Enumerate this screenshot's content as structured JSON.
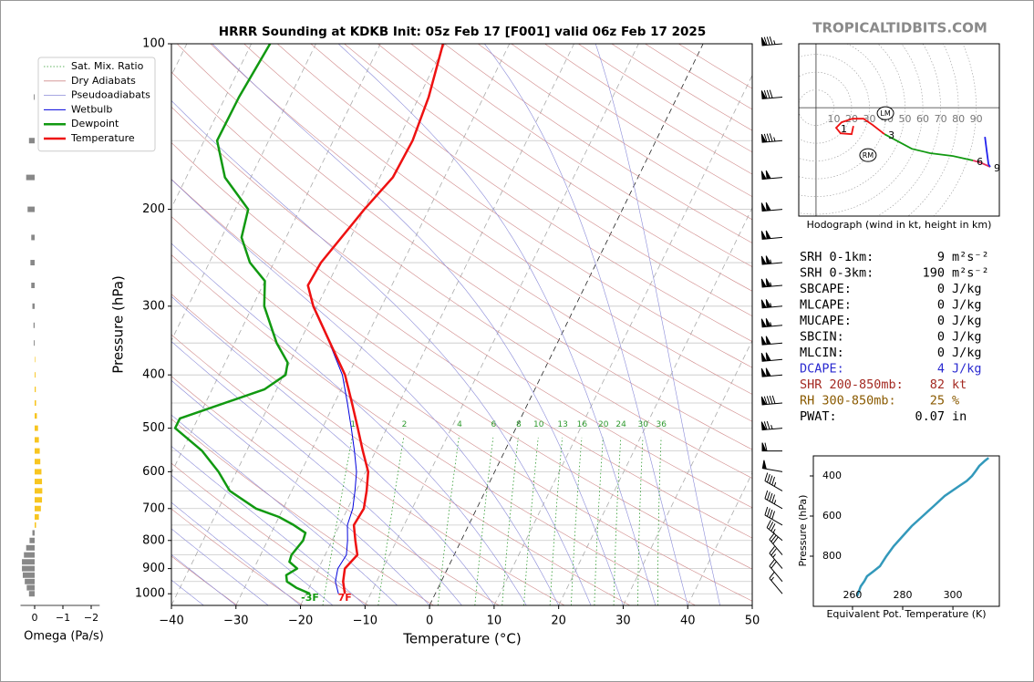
{
  "site": "TROPICALTIDBITS.COM",
  "chart_data": [
    {
      "type": "skewt",
      "title": "HRRR Sounding at KDKB Init: 05z Feb 17 [F001] valid 06z Feb 17 2025",
      "xlabel": "Temperature (°C)",
      "ylabel": "Pressure (hPa)",
      "xlim": [
        -40,
        50
      ],
      "ylim": [
        1050,
        100
      ],
      "log_scale": true,
      "xticks": [
        {
          "value": -40,
          "label": "−40"
        },
        {
          "value": -30,
          "label": "−30"
        },
        {
          "value": -20,
          "label": "−20"
        },
        {
          "value": -10,
          "label": "−10"
        },
        0,
        10,
        20,
        30,
        40,
        50
      ],
      "yticks": [
        100,
        200,
        300,
        400,
        500,
        600,
        700,
        800,
        900,
        1000
      ],
      "grid_levels": [
        100,
        150,
        200,
        250,
        300,
        350,
        400,
        450,
        500,
        550,
        600,
        650,
        700,
        750,
        800,
        850,
        900,
        950,
        1000
      ],
      "legend": "upper left",
      "background_lines": [
        {
          "name": "Sat. Mix. Ratio",
          "color": "#2e9a2e"
        },
        {
          "name": "Dry Adiabats",
          "color": "#d08a8a"
        },
        {
          "name": "Pseudoadiabats",
          "color": "#8a8ad8"
        }
      ],
      "mixing_ratios": [
        1,
        2,
        4,
        6,
        8,
        10,
        13,
        16,
        20,
        24,
        30,
        36
      ],
      "series": [
        {
          "name": "Wetbulb",
          "color": "#0000dd",
          "linewidth": 1,
          "pressure": [
            1000,
            950,
            900,
            850,
            800,
            750,
            700,
            650,
            600,
            550,
            500,
            450,
            400,
            350,
            300
          ],
          "values": [
            -15,
            -16.4,
            -17,
            -16.7,
            -17.6,
            -18.8,
            -19.2,
            -20.2,
            -21.4,
            -23.3,
            -25.5,
            -28,
            -30.9,
            -35.3,
            -40.7
          ]
        },
        {
          "name": "Dewpoint",
          "color": "#119911",
          "linewidth": 2.5,
          "surface_label": "-3F",
          "pressure": [
            1000,
            975,
            950,
            925,
            900,
            875,
            850,
            800,
            775,
            750,
            725,
            700,
            650,
            600,
            550,
            500,
            480,
            425,
            400,
            380,
            350,
            300,
            270,
            250,
            225,
            200,
            175,
            150,
            125,
            100
          ],
          "values": [
            -19.4,
            -22,
            -23.9,
            -24.5,
            -23.3,
            -25,
            -25.2,
            -24.5,
            -24.7,
            -27.1,
            -30,
            -34.2,
            -39.6,
            -42.8,
            -46.9,
            -52.8,
            -52.8,
            -41.9,
            -39.7,
            -40.3,
            -43.5,
            -48.2,
            -50,
            -53.7,
            -56.9,
            -58,
            -64,
            -68,
            -67.9,
            -67.1
          ]
        },
        {
          "name": "Temperature",
          "color": "#ee1111",
          "linewidth": 2.5,
          "surface_label": "7F",
          "pressure": [
            1000,
            950,
            900,
            850,
            800,
            750,
            700,
            650,
            600,
            550,
            500,
            450,
            400,
            350,
            300,
            275,
            250,
            200,
            175,
            150,
            125,
            100
          ],
          "values": [
            -14,
            -15.2,
            -15.9,
            -15,
            -16.4,
            -17.8,
            -17.5,
            -18.4,
            -19.6,
            -22,
            -24.5,
            -27.3,
            -30.5,
            -35.2,
            -40.6,
            -43,
            -42.7,
            -40,
            -38,
            -37.7,
            -38.5,
            -40.3
          ]
        }
      ],
      "winds": {
        "pressure": [
          100,
          125,
          150,
          175,
          200,
          225,
          250,
          275,
          300,
          325,
          350,
          375,
          400,
          450,
          500,
          550,
          600,
          650,
          700,
          750,
          800,
          850,
          900,
          950,
          1000
        ],
        "speed": [
          85,
          80,
          85,
          100,
          100,
          100,
          105,
          105,
          105,
          105,
          100,
          100,
          100,
          90,
          75,
          60,
          50,
          45,
          45,
          40,
          35,
          30,
          25,
          20,
          15
        ],
        "direction": [
          265,
          265,
          265,
          265,
          265,
          265,
          265,
          265,
          265,
          265,
          265,
          265,
          265,
          265,
          265,
          270,
          280,
          300,
          300,
          300,
          310,
          320,
          320,
          320,
          320
        ]
      }
    },
    {
      "type": "bar",
      "xlabel": "Omega (Pa/s)",
      "xlim": [
        0.5,
        -2.3
      ],
      "xticks": [
        0,
        {
          "value": -1,
          "label": "−1"
        },
        {
          "value": -2,
          "label": "−2"
        }
      ],
      "colors": {
        "positive": "#888888",
        "negative": "#f7c520"
      },
      "pressure": [
        100,
        125,
        150,
        175,
        200,
        225,
        250,
        275,
        300,
        325,
        350,
        375,
        400,
        425,
        450,
        475,
        500,
        525,
        550,
        575,
        600,
        625,
        650,
        675,
        700,
        725,
        750,
        775,
        800,
        825,
        850,
        875,
        900,
        925,
        950,
        975,
        1000
      ],
      "values": [
        0,
        0.03,
        0.2,
        0.3,
        0.25,
        0.12,
        0.15,
        0.12,
        0.08,
        0.04,
        0.03,
        -0.02,
        -0.03,
        -0.04,
        -0.05,
        -0.08,
        -0.12,
        -0.15,
        -0.18,
        -0.2,
        -0.24,
        -0.26,
        -0.27,
        -0.26,
        -0.22,
        -0.15,
        -0.05,
        0.08,
        0.18,
        0.3,
        0.38,
        0.45,
        0.45,
        0.42,
        0.35,
        0.28,
        0.2
      ]
    },
    {
      "type": "hodograph",
      "caption": "Hodograph (wind in kt, height in km)",
      "xlim": [
        -9.7,
        103
      ],
      "ylim": [
        -61,
        36
      ],
      "rings": [
        10,
        20,
        30,
        40,
        50,
        60,
        70,
        80,
        90
      ],
      "segments": [
        {
          "color": "#ee1111",
          "u": [
            21,
            20,
            13.8,
            11.3,
            14.4,
            20.5,
            26.7,
            31.8,
            38.5
          ],
          "v": [
            -10.3,
            -14.9,
            -14.4,
            -11.3,
            -8.2,
            -6.2,
            -6.2,
            -9.7,
            -14.9
          ]
        },
        {
          "color": "#119911",
          "u": [
            38.5,
            46.2,
            53.8,
            64.1,
            76.9,
            88.2
          ],
          "v": [
            -14.9,
            -19,
            -23.1,
            -25.6,
            -27.2,
            -29.7
          ]
        },
        {
          "color": "#e0305a",
          "u": [
            88.2,
            92.3,
            97.9
          ],
          "v": [
            -29.7,
            -30.8,
            -33.3
          ]
        },
        {
          "color": "#2222ee",
          "u": [
            97.9,
            96.9,
            95.9,
            94.9
          ],
          "v": [
            -33.3,
            -31.8,
            -24.1,
            -16.4
          ]
        }
      ],
      "height_labels": {
        "labels": [
          1,
          3,
          6,
          9
        ],
        "u": [
          11.8,
          38.5,
          88.2,
          97.9
        ],
        "v": [
          -11.3,
          -14.9,
          -29.7,
          -33.3
        ]
      },
      "storm_motion": [
        {
          "label": "RM",
          "u": 29.2,
          "v": -26.7
        },
        {
          "label": "LM",
          "u": 39,
          "v": -3.1
        }
      ]
    },
    {
      "type": "line",
      "xlabel": "Equivalent Pot. Temperature (K)",
      "ylabel": "Pressure (hPa)",
      "xlim": [
        244.4,
        318.5
      ],
      "ylim": [
        1050,
        300
      ],
      "xticks": [
        260,
        280,
        300
      ],
      "yticks": [
        400,
        600,
        800
      ],
      "color": "#3399bb",
      "pressure": [
        1000,
        950,
        925,
        900,
        875,
        850,
        800,
        750,
        700,
        650,
        600,
        550,
        500,
        450,
        425,
        400,
        375,
        350,
        325,
        310
      ],
      "values": [
        261.8,
        263.3,
        264.7,
        265.8,
        268.4,
        270.9,
        273.5,
        276.4,
        280,
        283.6,
        288,
        292.4,
        296.7,
        302.5,
        305.5,
        307.6,
        309.1,
        310.5,
        312.7,
        314.2
      ]
    }
  ],
  "indices": [
    {
      "label": "SRH 0-1km:",
      "value": 9,
      "unit": "m²s⁻²",
      "color": "#000000"
    },
    {
      "label": "SRH 0-3km:",
      "value": 190,
      "unit": "m²s⁻²",
      "color": "#000000"
    },
    {
      "label": "SBCAPE:",
      "value": 0,
      "unit": "J/kg",
      "color": "#000000"
    },
    {
      "label": "MLCAPE:",
      "value": 0,
      "unit": "J/kg",
      "color": "#000000"
    },
    {
      "label": "MUCAPE:",
      "value": 0,
      "unit": "J/kg",
      "color": "#000000"
    },
    {
      "label": "SBCIN:",
      "value": 0,
      "unit": "J/kg",
      "color": "#000000"
    },
    {
      "label": "MLCIN:",
      "value": 0,
      "unit": "J/kg",
      "color": "#000000"
    },
    {
      "label": "DCAPE:",
      "value": 4,
      "unit": "J/kg",
      "color": "#2a2ad0"
    },
    {
      "label": "SHR 200-850mb:",
      "value": 82,
      "unit": "kt",
      "color": "#a42a22"
    },
    {
      "label": "RH 300-850mb:",
      "value": 25,
      "unit": "%",
      "color": "#8a5a00"
    },
    {
      "label": "PWAT:",
      "value": 0.07,
      "unit": "in",
      "color": "#000000"
    }
  ]
}
